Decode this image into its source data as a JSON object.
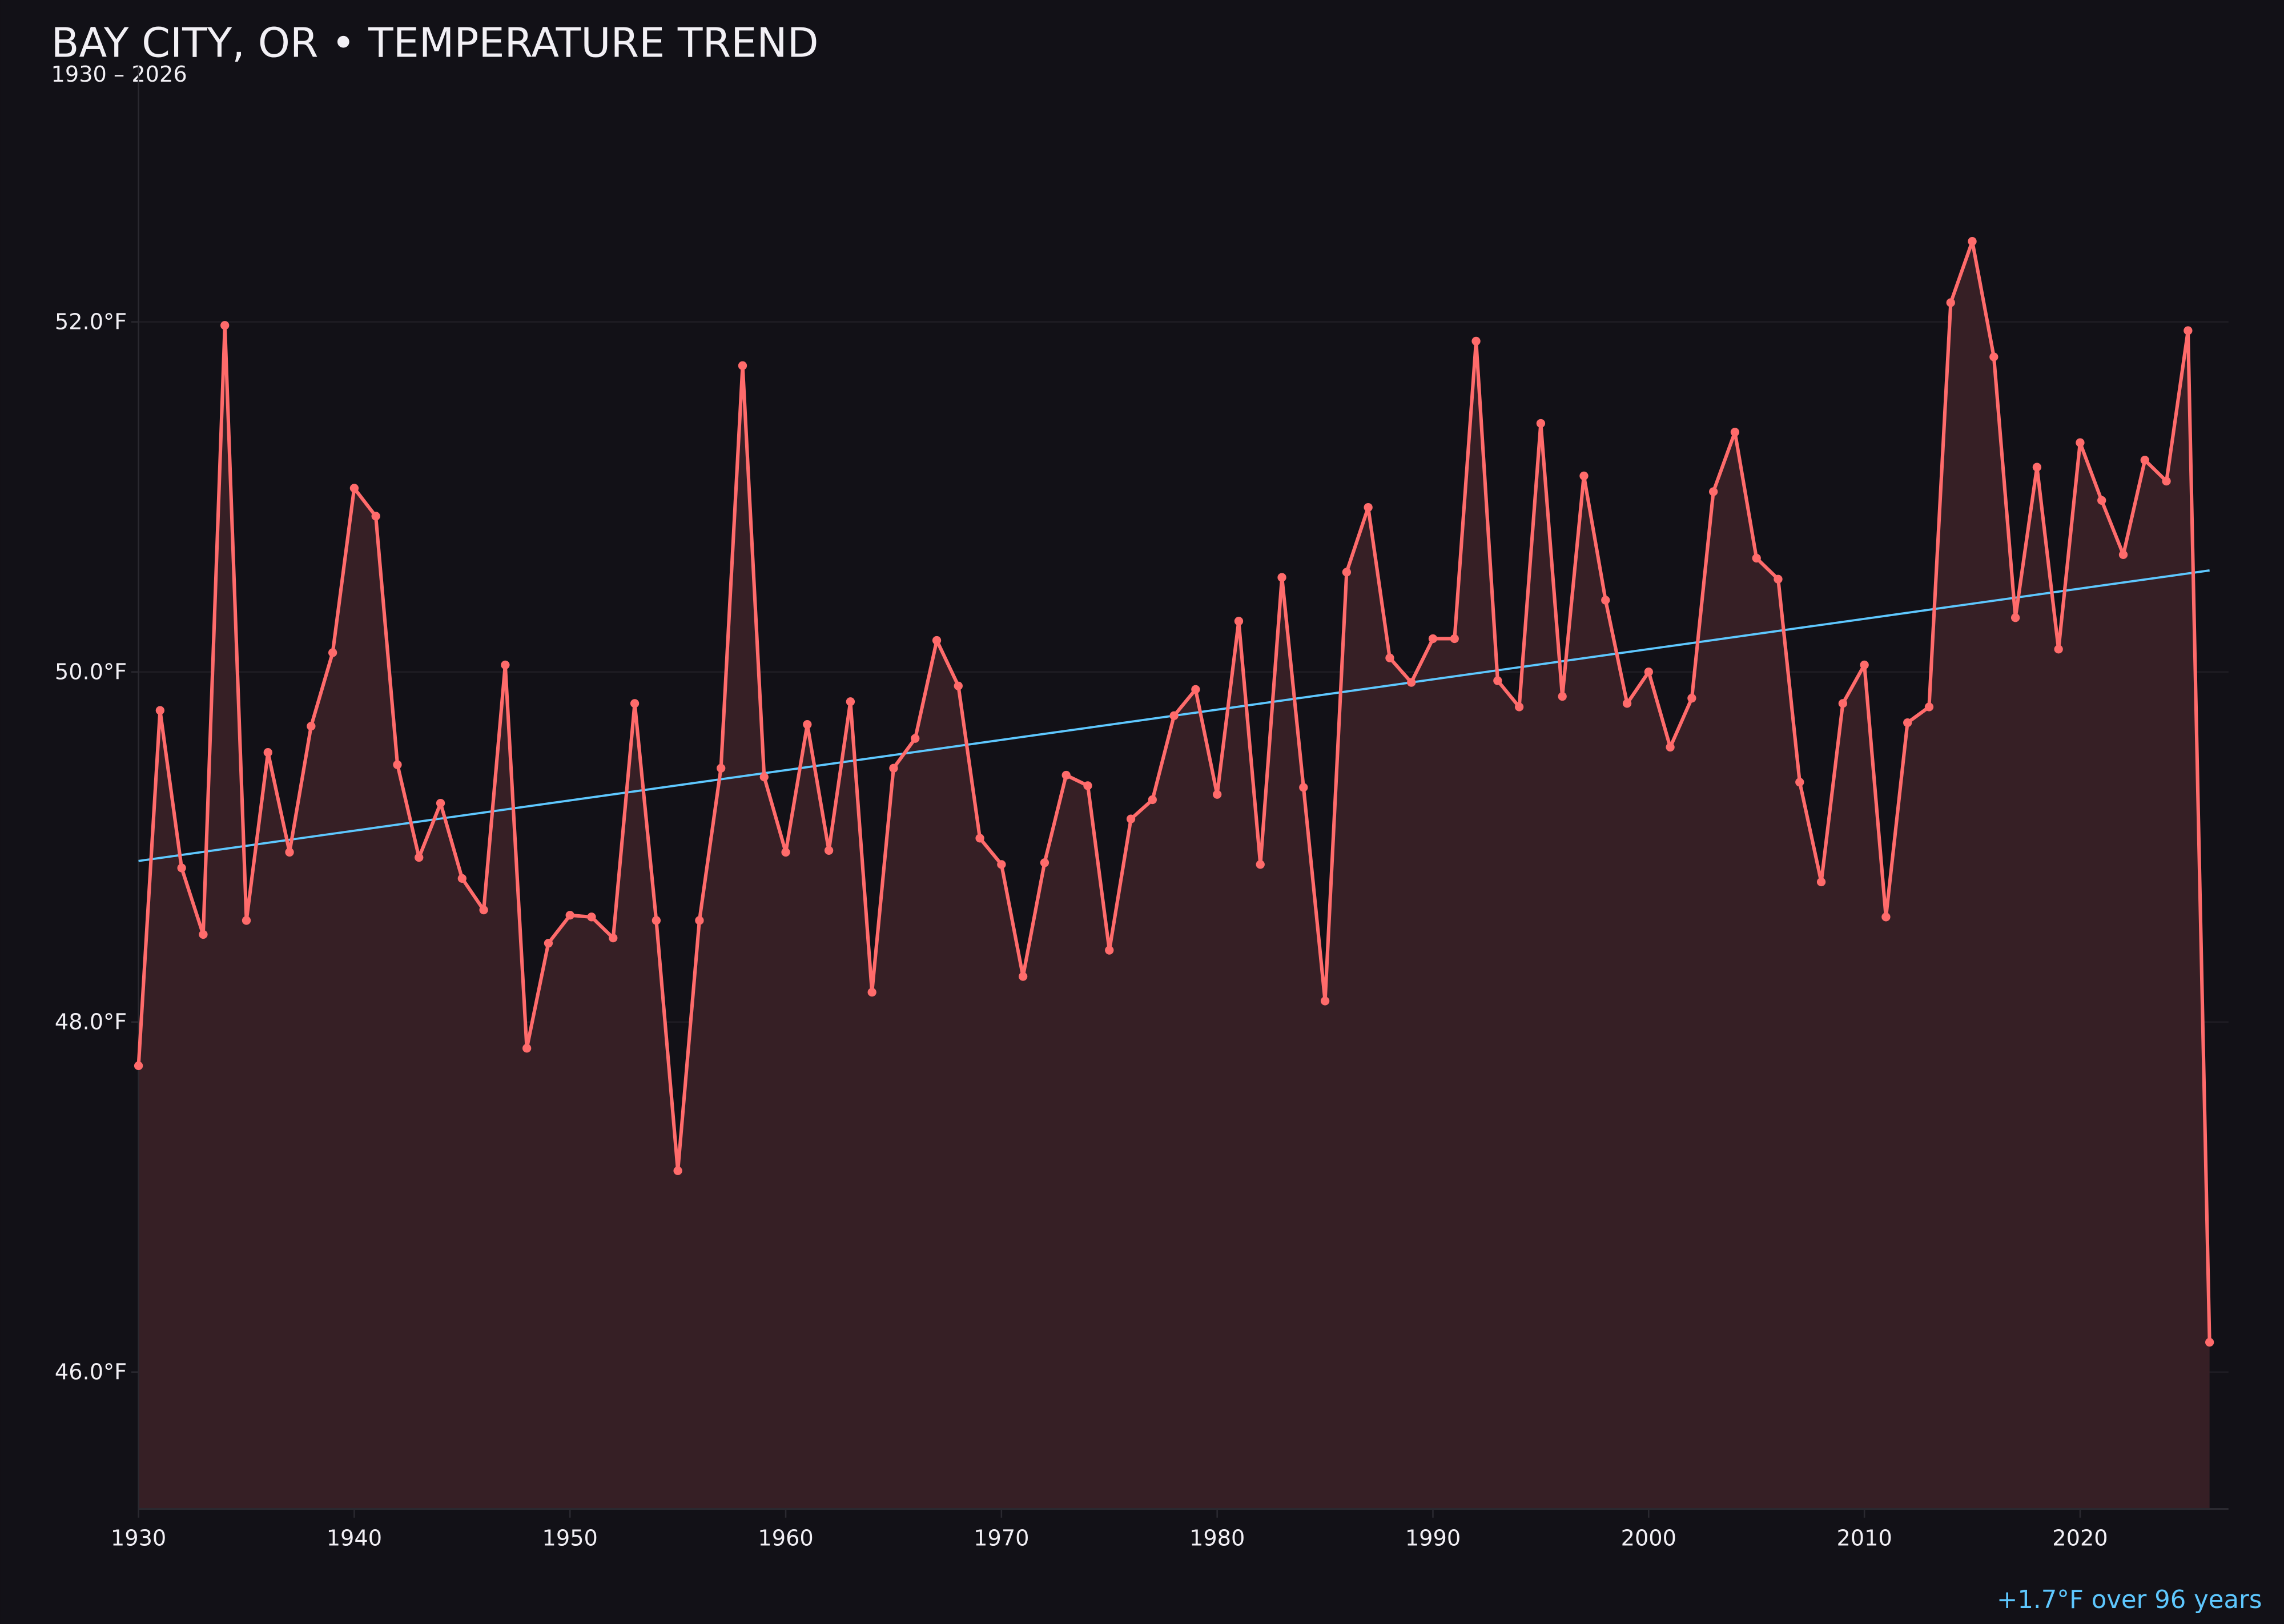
{
  "colors": {
    "background": "#121117",
    "line": "#ff6b6b",
    "fill": "#361f25",
    "trend": "#5ec8ff",
    "text": "#f2f0f5",
    "grid": "#1f1d24"
  },
  "chart_data": {
    "type": "line",
    "title": "BAY CITY, OR • TEMPERATURE TREND",
    "subtitle": "1930 – 2026",
    "annotation": "+1.7°F over 96 years",
    "xlabel": "",
    "ylabel": "",
    "xlim": [
      1930,
      2027
    ],
    "ylim": [
      45.2,
      53.5
    ],
    "grid": true,
    "legend": "none",
    "x_ticks": [
      "1930",
      "1940",
      "1950",
      "1960",
      "1970",
      "1980",
      "1990",
      "2000",
      "2010",
      "2020"
    ],
    "y_ticks": [
      {
        "value": 46,
        "label": "46.0°F"
      },
      {
        "value": 48,
        "label": "48.0°F"
      },
      {
        "value": 50,
        "label": "50.0°F"
      },
      {
        "value": 52,
        "label": "52.0°F"
      }
    ],
    "x_start": 1930,
    "values": [
      47.75,
      49.78,
      48.88,
      48.5,
      51.98,
      48.58,
      49.54,
      48.97,
      49.69,
      50.11,
      51.05,
      50.89,
      49.47,
      48.94,
      49.25,
      48.82,
      48.64,
      50.04,
      47.85,
      48.45,
      48.61,
      48.6,
      48.48,
      49.82,
      48.58,
      47.15,
      48.58,
      49.45,
      51.75,
      49.4,
      48.97,
      49.7,
      48.98,
      49.83,
      48.17,
      49.45,
      49.62,
      50.18,
      49.92,
      49.05,
      48.9,
      48.26,
      48.91,
      49.41,
      49.35,
      48.41,
      49.16,
      49.27,
      49.75,
      49.9,
      49.3,
      50.29,
      48.9,
      50.54,
      49.34,
      48.12,
      50.57,
      50.94,
      50.08,
      49.94,
      50.19,
      50.19,
      51.89,
      49.95,
      49.8,
      51.42,
      49.86,
      51.12,
      50.41,
      49.82,
      50.0,
      49.57,
      49.85,
      51.03,
      51.37,
      50.65,
      50.53,
      49.37,
      48.8,
      49.82,
      50.04,
      48.6,
      49.71,
      49.8,
      52.11,
      52.46,
      51.8,
      50.31,
      51.17,
      50.13,
      51.31,
      50.98,
      50.67,
      51.21,
      51.09,
      51.95,
      46.17
    ],
    "trend": {
      "start": {
        "x": 1930,
        "y": 48.92
      },
      "end": {
        "x": 2026,
        "y": 50.58
      }
    }
  }
}
